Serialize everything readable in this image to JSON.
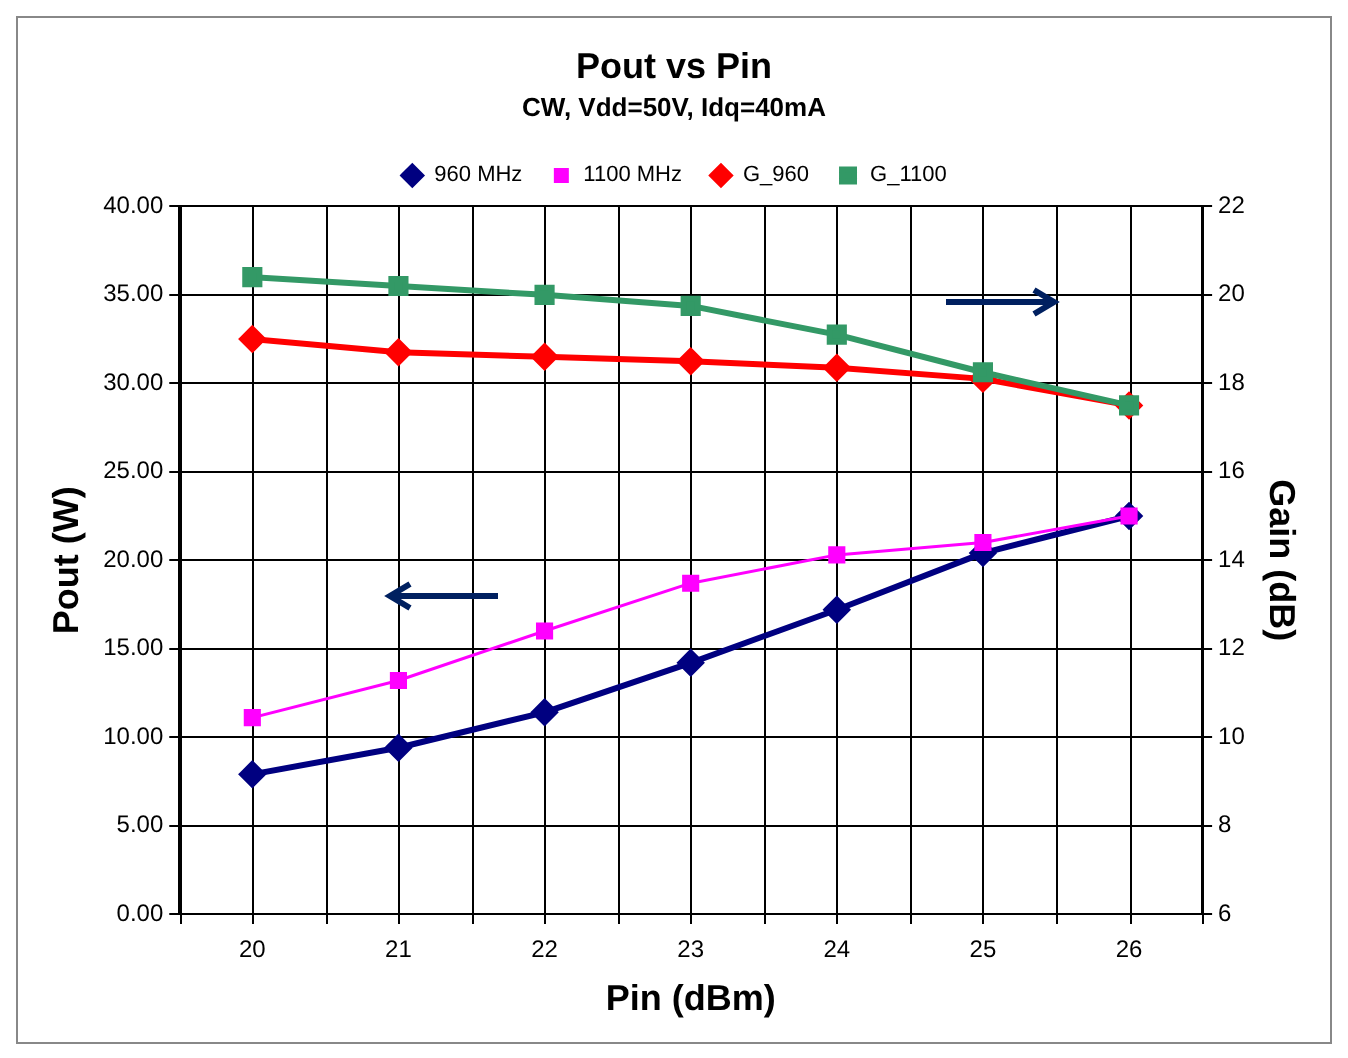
{
  "chart_data": {
    "type": "line",
    "title": "Pout vs Pin",
    "subtitle": "CW, Vdd=50V, Idq=40mA",
    "xlabel": "Pin (dBm)",
    "ylabel": "Pout (W)",
    "y2label": "Gain (dB)",
    "categories": [
      "20",
      "21",
      "22",
      "23",
      "24",
      "25",
      "26"
    ],
    "series": [
      {
        "name": "960 MHz",
        "color": "#000080",
        "marker": "diamond",
        "values": [
          7.9,
          9.4,
          11.4,
          14.2,
          17.2,
          20.4,
          22.5
        ]
      },
      {
        "name": "1100 MHz",
        "color": "#ff00ff",
        "marker": "square",
        "values": [
          11.1,
          13.2,
          16.0,
          18.7,
          20.3,
          21.0,
          22.5
        ]
      },
      {
        "name": "G_960",
        "color": "#ff0000",
        "marker": "diamond",
        "axis": "y2",
        "values": [
          19.0,
          18.7,
          18.6,
          18.5,
          18.35,
          18.1,
          17.5
        ]
      },
      {
        "name": "G_1100",
        "color": "#339966",
        "marker": "square",
        "axis": "y2",
        "values": [
          20.4,
          20.2,
          20.0,
          19.75,
          19.1,
          18.25,
          17.5
        ]
      }
    ],
    "ylim": [
      0,
      40
    ],
    "yticks": [
      {
        "value": 0,
        "label": "0.00"
      },
      {
        "value": 5,
        "label": "5.00"
      },
      {
        "value": 10,
        "label": "10.00"
      },
      {
        "value": 15,
        "label": "15.00"
      },
      {
        "value": 20,
        "label": "20.00"
      },
      {
        "value": 25,
        "label": "25.00"
      },
      {
        "value": 30,
        "label": "30.00"
      },
      {
        "value": 35,
        "label": "35.00"
      },
      {
        "value": 40,
        "label": "40.00"
      }
    ],
    "y2lim": [
      6,
      22
    ],
    "y2ticks": [
      6,
      8,
      10,
      12,
      14,
      16,
      18,
      20,
      22
    ],
    "grid": true,
    "legend": "top",
    "line_style": "solid"
  }
}
